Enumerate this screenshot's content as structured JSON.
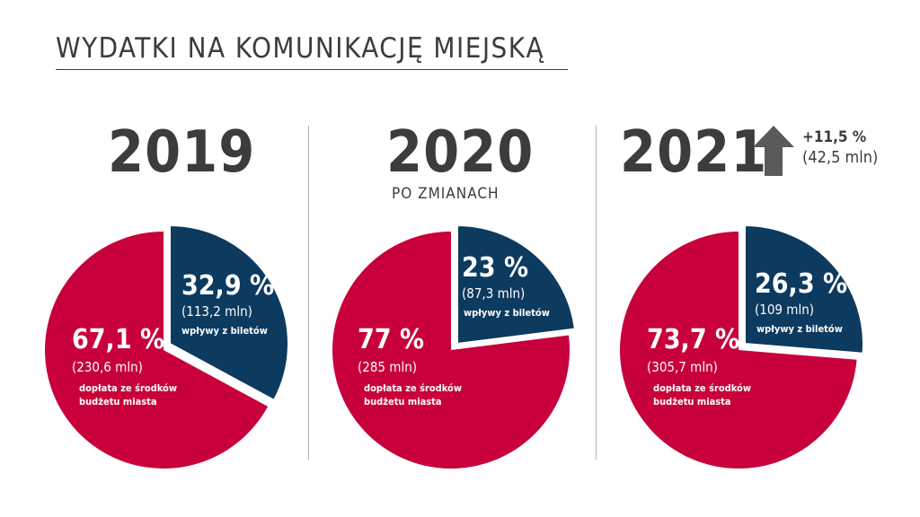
{
  "title": "WYDATKI NA KOMUNIKACJĘ MIEJSKĄ",
  "colors": {
    "subsidy": "#c8003c",
    "tickets": "#0d3a5f",
    "text": "#3c3c3b",
    "arrow": "#5a5a5a"
  },
  "chart_data": [
    {
      "type": "pie",
      "year": "2019",
      "subtitle": "",
      "slices": [
        {
          "key": "tickets",
          "value": 32.9,
          "pct_label": "32,9 %",
          "amount": "(113,2 mln)",
          "desc": [
            "wpływy z biletów"
          ]
        },
        {
          "key": "subsidy",
          "value": 67.1,
          "pct_label": "67,1 %",
          "amount": "(230,6 mln)",
          "desc": [
            "dopłata ze środków",
            "budżetu miasta"
          ]
        }
      ]
    },
    {
      "type": "pie",
      "year": "2020",
      "subtitle": "PO ZMIANACH",
      "slices": [
        {
          "key": "tickets",
          "value": 23,
          "pct_label": "23 %",
          "amount": "(87,3 mln)",
          "desc": [
            "wpływy z biletów"
          ]
        },
        {
          "key": "subsidy",
          "value": 77,
          "pct_label": "77 %",
          "amount": "(285 mln)",
          "desc": [
            "dopłata ze środków",
            "budżetu miasta"
          ]
        }
      ]
    },
    {
      "type": "pie",
      "year": "2021",
      "subtitle": "",
      "change": {
        "pct": "+11,5 %",
        "amount": "(42,5 mln)",
        "icon": "arrow-up-icon"
      },
      "slices": [
        {
          "key": "tickets",
          "value": 26.3,
          "pct_label": "26,3 %",
          "amount": "(109 mln)",
          "desc": [
            "wpływy z biletów"
          ]
        },
        {
          "key": "subsidy",
          "value": 73.7,
          "pct_label": "73,7 %",
          "amount": "(305,7 mln)",
          "desc": [
            "dopłata ze środków",
            "budżetu miasta"
          ]
        }
      ]
    }
  ]
}
